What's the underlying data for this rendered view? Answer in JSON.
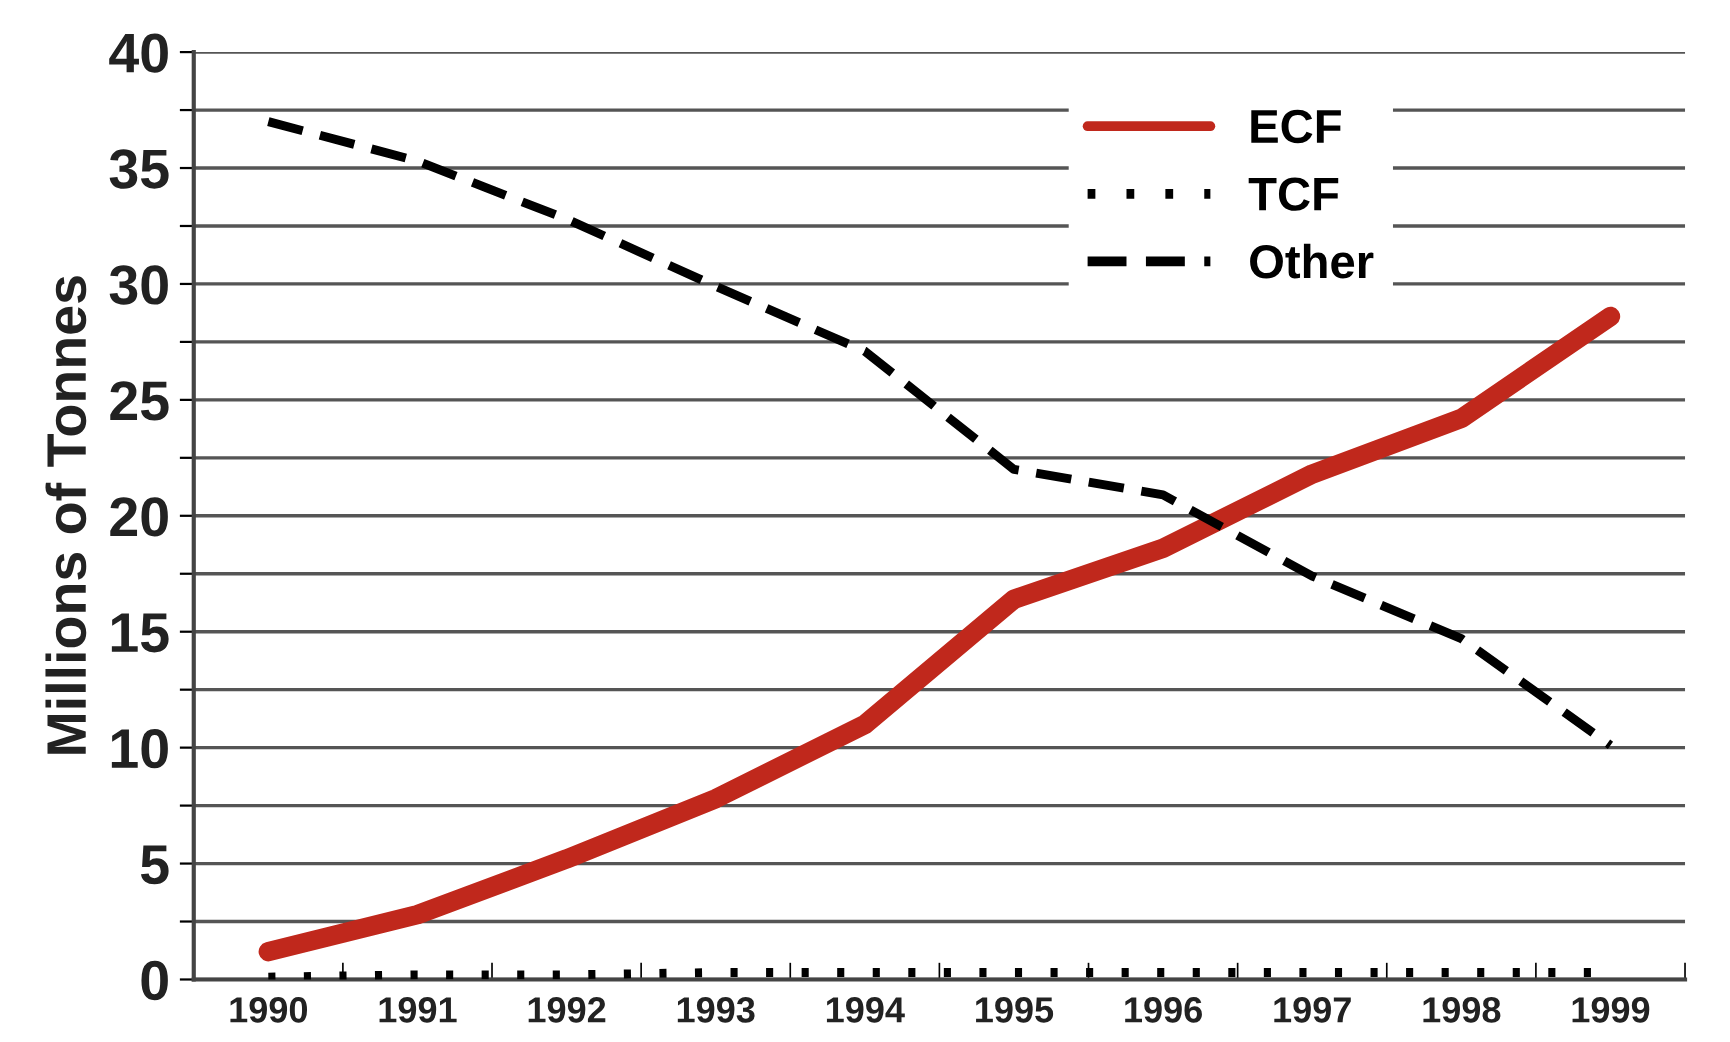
{
  "chart_data": {
    "type": "line",
    "ylabel": "Millions of Tonnes",
    "categories": [
      "1990",
      "1991",
      "1992",
      "1993",
      "1994",
      "1995",
      "1996",
      "1997",
      "1998",
      "1999"
    ],
    "series": [
      {
        "name": "ECF",
        "color": "#c0281c",
        "line_style": "solid",
        "values": [
          1.2,
          2.8,
          5.2,
          7.8,
          11,
          16.4,
          18.6,
          21.8,
          24.2,
          28.6
        ]
      },
      {
        "name": "TCF",
        "color": "#000000",
        "line_style": "dotted",
        "values": [
          0.1,
          0.2,
          0.2,
          0.3,
          0.3,
          0.3,
          0.3,
          0.3,
          0.3,
          0.3
        ]
      },
      {
        "name": "Other",
        "color": "#000000",
        "line_style": "dashed",
        "values": [
          37,
          35.3,
          32.8,
          29.9,
          27.1,
          22,
          20.9,
          17.4,
          14.7,
          10.1
        ]
      }
    ],
    "ylim": [
      0,
      40
    ],
    "yticks": [
      0,
      {
        "value": 2.5,
        "label": null
      },
      5,
      {
        "value": 7.5,
        "label": null
      },
      10,
      {
        "value": 12.5,
        "label": null
      },
      15,
      {
        "value": 17.5,
        "label": null
      },
      20,
      {
        "value": 22.5,
        "label": null
      },
      25,
      {
        "value": 27.5,
        "label": null
      },
      30,
      {
        "value": 32.5,
        "label": null
      },
      35,
      {
        "value": 37.5,
        "label": null
      },
      40
    ],
    "grid": "y",
    "legend": "top right"
  }
}
